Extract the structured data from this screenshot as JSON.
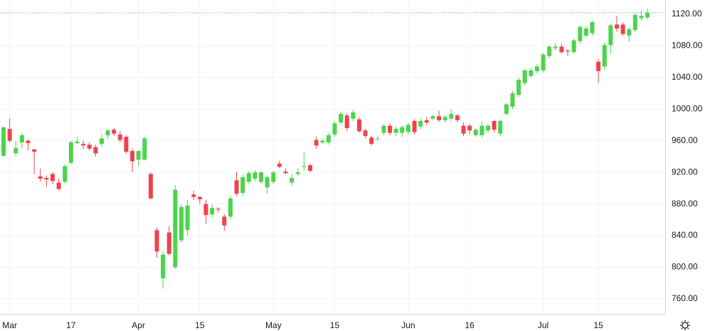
{
  "chart_data": {
    "type": "candlestick",
    "categories": [
      null,
      "Mar",
      null,
      null,
      null,
      null,
      null,
      null,
      null,
      null,
      null,
      "17",
      null,
      null,
      null,
      null,
      null,
      null,
      null,
      null,
      null,
      null,
      "Apr",
      null,
      null,
      null,
      null,
      null,
      null,
      null,
      null,
      null,
      "15",
      null,
      null,
      null,
      null,
      null,
      null,
      null,
      null,
      null,
      null,
      null,
      "May",
      null,
      null,
      null,
      null,
      null,
      null,
      null,
      null,
      null,
      "15",
      null,
      null,
      null,
      null,
      null,
      null,
      null,
      null,
      null,
      null,
      null,
      "Jun",
      null,
      null,
      null,
      null,
      null,
      null,
      null,
      null,
      null,
      "16",
      null,
      null,
      null,
      null,
      null,
      null,
      null,
      null,
      null,
      null,
      null,
      "Jul",
      null,
      null,
      null,
      null,
      null,
      null,
      null,
      null,
      "15",
      null,
      null,
      null,
      null,
      null,
      null,
      null,
      null
    ],
    "open": [
      941,
      975,
      944,
      958,
      960,
      949,
      915,
      913,
      918,
      907,
      908,
      932,
      957,
      956,
      955,
      952,
      956,
      967,
      974,
      968,
      965,
      947,
      936,
      936,
      918,
      847,
      786,
      844,
      800,
      834,
      847,
      892,
      889,
      880,
      867,
      874,
      864,
      864,
      910,
      894,
      908,
      912,
      908,
      901,
      908,
      931,
      921,
      907,
      918,
      927,
      929,
      961,
      958,
      958,
      968,
      983,
      992,
      988,
      987,
      973,
      964,
      962,
      970,
      979,
      970,
      970,
      971,
      985,
      978,
      986,
      988,
      991,
      986,
      988,
      992,
      979,
      979,
      967,
      967,
      973,
      985,
      969,
      994,
      1003,
      1018,
      1033,
      1042,
      1048,
      1049,
      1067,
      1077,
      1079,
      1074,
      1072,
      1086,
      1093,
      1096,
      1060,
      1054,
      1081,
      1107,
      1107,
      1093,
      1100,
      1115,
      1116
    ],
    "high": [
      978,
      988,
      960,
      970,
      962,
      950,
      925,
      916,
      920,
      912,
      930,
      960,
      965,
      960,
      958,
      955,
      968,
      975,
      976,
      972,
      967,
      950,
      948,
      965,
      920,
      850,
      820,
      852,
      904,
      880,
      885,
      897,
      890,
      885,
      880,
      876,
      867,
      890,
      921,
      917,
      922,
      923,
      922,
      916,
      922,
      935,
      925,
      918,
      925,
      945,
      931,
      965,
      963,
      970,
      985,
      997,
      995,
      999,
      990,
      975,
      966,
      966,
      981,
      982,
      978,
      980,
      983,
      987,
      988,
      990,
      993,
      998,
      993,
      1000,
      994,
      983,
      981,
      976,
      985,
      981,
      986,
      987,
      1008,
      1023,
      1040,
      1051,
      1052,
      1057,
      1071,
      1081,
      1084,
      1083,
      1076,
      1089,
      1106,
      1105,
      1112,
      1063,
      1084,
      1108,
      1118,
      1110,
      1104,
      1121,
      1125,
      1127
    ],
    "low": [
      940,
      958,
      940,
      950,
      948,
      918,
      908,
      902,
      905,
      897,
      906,
      930,
      955,
      950,
      948,
      940,
      952,
      962,
      966,
      958,
      944,
      920,
      928,
      935,
      886,
      812,
      773,
      815,
      798,
      831,
      840,
      885,
      880,
      855,
      863,
      869,
      846,
      860,
      890,
      890,
      905,
      908,
      905,
      893,
      905,
      925,
      918,
      903,
      915,
      922,
      920,
      950,
      956,
      955,
      965,
      980,
      972,
      985,
      970,
      963,
      954,
      959,
      967,
      967,
      966,
      965,
      968,
      968,
      975,
      980,
      986,
      984,
      983,
      985,
      983,
      966,
      968,
      965,
      964,
      970,
      970,
      966,
      992,
      1000,
      1015,
      1030,
      1040,
      1045,
      1046,
      1064,
      1074,
      1070,
      1067,
      1070,
      1083,
      1090,
      1093,
      1033,
      1050,
      1070,
      1098,
      1093,
      1085,
      1097,
      1112,
      1114
    ],
    "close": [
      977,
      960,
      951,
      967,
      957,
      946,
      912,
      911,
      909,
      899,
      928,
      958,
      959,
      954,
      950,
      944,
      963,
      973,
      969,
      961,
      946,
      934,
      947,
      963,
      887,
      820,
      816,
      817,
      898,
      876,
      878,
      889,
      886,
      866,
      875,
      873,
      853,
      887,
      893,
      914,
      919,
      920,
      920,
      914,
      920,
      927,
      919,
      913,
      920,
      928,
      922,
      954,
      960,
      967,
      982,
      994,
      976,
      996,
      972,
      966,
      956,
      963,
      979,
      970,
      975,
      977,
      980,
      971,
      985,
      983,
      991,
      986,
      990,
      994,
      986,
      969,
      973,
      974,
      979,
      979,
      974,
      985,
      1006,
      1020,
      1037,
      1049,
      1049,
      1054,
      1069,
      1079,
      1079,
      1072,
      1073,
      1087,
      1104,
      1102,
      1110,
      1048,
      1081,
      1106,
      1102,
      1095,
      1101,
      1119,
      1118,
      1122
    ],
    "up_color": "#4cd44c",
    "down_color": "#f0424e",
    "ylim": [
      741,
      1138
    ],
    "yticks": [
      {
        "value": 760,
        "label": "760.00"
      },
      {
        "value": 800,
        "label": "800.00"
      },
      {
        "value": 840,
        "label": "840.00"
      },
      {
        "value": 880,
        "label": "880.00"
      },
      {
        "value": 920,
        "label": "920.00"
      },
      {
        "value": 960,
        "label": "960.00"
      },
      {
        "value": 1000,
        "label": "1000.00"
      },
      {
        "value": 1040,
        "label": "1040.00"
      },
      {
        "value": 1080,
        "label": "1080.00"
      },
      {
        "value": 1120,
        "label": "1120.00"
      }
    ],
    "grid": true
  }
}
